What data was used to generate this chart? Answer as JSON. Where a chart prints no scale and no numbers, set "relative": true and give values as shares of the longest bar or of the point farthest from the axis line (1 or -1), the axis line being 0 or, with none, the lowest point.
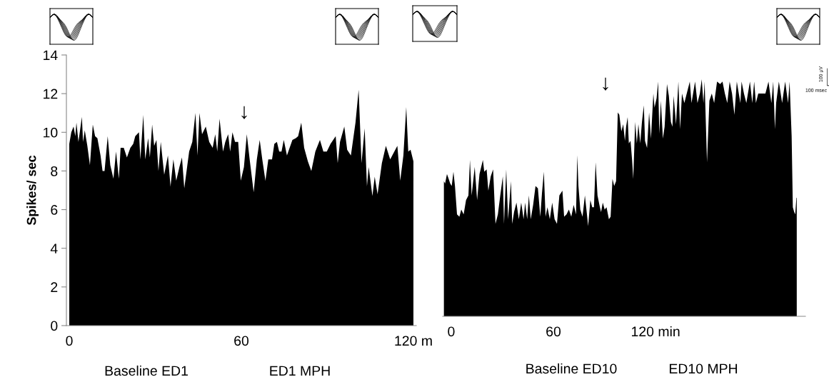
{
  "chart_data": [
    {
      "type": "area",
      "ylabel": "Spikes/ sec",
      "xlim": [
        -1,
        121
      ],
      "xticks": [
        0,
        60,
        {
          "value": 120,
          "label": "120 m"
        }
      ],
      "ylim": [
        0,
        14
      ],
      "yticks": [
        0,
        2,
        4,
        6,
        8,
        10,
        12,
        14
      ],
      "tick_labels": "xy",
      "grid": false,
      "x": [
        0,
        0.7,
        1.5,
        2.1,
        2.5,
        3.2,
        4.4,
        4.8,
        5.4,
        6.3,
        7.2,
        8.2,
        9,
        9.8,
        10.9,
        11.6,
        12.3,
        13.4,
        14.3,
        15.4,
        16.3,
        17.3,
        17.9,
        19,
        20.1,
        21.3,
        22.3,
        23,
        24.3,
        24.8,
        25.8,
        26.5,
        27.5,
        28.1,
        28.9,
        29.6,
        30.4,
        31.1,
        31.9,
        33.1,
        34.4,
        35.3,
        36.3,
        37.3,
        38.4,
        39.3,
        40.1,
        41.8,
        42.9,
        44,
        44.7,
        45.4,
        46.3,
        47.6,
        48.8,
        50,
        50.9,
        51.6,
        52.4,
        53.6,
        54.4,
        55.4,
        56.1,
        56.9,
        57.8,
        58.9,
        59.8,
        60.9,
        61.9,
        62.9,
        64.3,
        65.4,
        66.4,
        67.3,
        68.4,
        69.4,
        70.7,
        71.5,
        72.4,
        73.2,
        74,
        74.8,
        75.9,
        77.8,
        79,
        79.8,
        80.9,
        81.9,
        83.2,
        84.4,
        85.8,
        87.4,
        88.6,
        89.8,
        91.1,
        92.9,
        93.6,
        94.4,
        95.9,
        96.9,
        98.2,
        99.8,
        100.9,
        101.9,
        103,
        103.8,
        104.4,
        105.7,
        106.5,
        107.5,
        109,
        110.4,
        111.9,
        114.4,
        115.4,
        116.5,
        117.5,
        118.2,
        119,
        120
      ],
      "series": [
        {
          "color": "#000000",
          "values": [
            9.4,
            10.0,
            10.3,
            9.8,
            10.5,
            9.5,
            10.8,
            9.5,
            10.1,
            9.3,
            8.3,
            10.4,
            9.8,
            9.7,
            8.8,
            8.0,
            8.0,
            9.8,
            8.3,
            7.6,
            9.0,
            7.6,
            9.2,
            9.2,
            8.7,
            9.2,
            9.4,
            9.8,
            10.0,
            8.6,
            10.9,
            8.6,
            9.7,
            8.7,
            10.4,
            9.3,
            9.6,
            8.0,
            9.5,
            7.8,
            8.8,
            7.2,
            8.6,
            7.5,
            8.2,
            8.7,
            7.1,
            9.0,
            9.5,
            11.0,
            8.8,
            11.0,
            9.9,
            10.3,
            9.5,
            9.2,
            9.9,
            9.0,
            10.7,
            9.0,
            9.5,
            9.9,
            9.0,
            10.0,
            9.5,
            9.5,
            7.5,
            8.2,
            9.9,
            8.6,
            6.9,
            8.6,
            9.6,
            8.6,
            7.5,
            8.6,
            8.6,
            9.4,
            9.5,
            9.0,
            9.0,
            9.6,
            8.8,
            9.6,
            9.7,
            9.8,
            10.5,
            9.2,
            8.5,
            8.0,
            9.0,
            9.6,
            9.0,
            9.0,
            9.4,
            9.8,
            8.4,
            9.5,
            10.3,
            9.1,
            8.8,
            10.5,
            12.2,
            8.4,
            10.2,
            7.2,
            8.2,
            6.7,
            7.7,
            6.8,
            8.4,
            9.3,
            8.6,
            9.3,
            7.5,
            8.8,
            11.3,
            9.0,
            9.1,
            8.5
          ]
        }
      ],
      "annotations": [
        "↓",
        "Baseline ED1",
        "ED1 MPH"
      ]
    },
    {
      "type": "area",
      "relative": true,
      "xlim": [
        -5,
        208
      ],
      "xticks": [
        0,
        60,
        {
          "value": 120,
          "label": "120 min"
        }
      ],
      "tick_labels": "x",
      "grid": false,
      "x": [
        -4.3,
        -3.6,
        -2.5,
        -1.5,
        -0.6,
        0.3,
        1.3,
        2.2,
        3.4,
        4.8,
        5.9,
        7.3,
        8.7,
        10.1,
        11.0,
        12.0,
        13.8,
        15.2,
        16.6,
        18.6,
        19.4,
        20.8,
        21.8,
        23.2,
        24.6,
        26.0,
        27.4,
        28.8,
        30.3,
        31.0,
        32.3,
        33.4,
        35.1,
        35.8,
        36.9,
        38.3,
        39.7,
        41.1,
        42.5,
        43.4,
        44.6,
        45.6,
        46.7,
        48.1,
        49.5,
        50.9,
        52.3,
        53.3,
        54.4,
        55.4,
        56.5,
        57.9,
        59.3,
        60.7,
        62.1,
        63.5,
        65.3,
        66.3,
        67.7,
        69.1,
        70.5,
        71.9,
        73.3,
        74.0,
        74.7,
        75.8,
        77.1,
        78.5,
        79.7,
        80.4,
        81.7,
        82.8,
        83.8,
        84.8,
        85.9,
        87.3,
        88.0,
        89.0,
        90.1,
        91.2,
        92.6,
        93.6,
        94.7,
        95.7,
        96.8,
        97.8,
        98.7,
        99.9,
        101.0,
        102.0,
        102.7,
        103.6,
        104.3,
        105.3,
        106.2,
        106.9,
        108.0,
        109.0,
        109.9,
        111.0,
        112.0,
        113.1,
        113.8,
        115.0,
        116.2,
        117.3,
        118.7,
        119.4,
        120.6,
        121.5,
        122.2,
        123.1,
        124.3,
        125.3,
        126.7,
        127.8,
        129.0,
        129.9,
        130.6,
        132.0,
        133.4,
        134.4,
        135.5,
        136.9,
        138.3,
        140.1,
        141.1,
        143.2,
        144.6,
        146.0,
        147.1,
        148.1,
        148.8,
        150.2,
        151.6,
        153.0,
        154.4,
        156.1,
        157.9,
        159.3,
        160.7,
        162.1,
        163.5,
        164.9,
        166.3,
        167.7,
        169.8,
        170.5,
        171.9,
        173.3,
        175.4,
        176.8,
        177.9,
        178.9,
        180.3,
        182.4,
        184.5,
        186.3,
        188.0,
        189.1,
        190.1,
        190.8,
        192.4,
        194.3,
        196.1,
        197.8,
        198.7,
        199.9,
        200.6,
        201.4,
        202.0,
        202.7,
        202.9
      ],
      "series": [
        {
          "color": "#000000",
          "values": [
            0.57,
            0.56,
            0.6,
            0.58,
            0.56,
            0.55,
            0.61,
            0.55,
            0.43,
            0.42,
            0.45,
            0.43,
            0.49,
            0.51,
            0.66,
            0.51,
            0.63,
            0.49,
            0.6,
            0.66,
            0.61,
            0.62,
            0.53,
            0.59,
            0.62,
            0.39,
            0.43,
            0.51,
            0.59,
            0.39,
            0.62,
            0.41,
            0.57,
            0.39,
            0.44,
            0.48,
            0.41,
            0.48,
            0.41,
            0.48,
            0.41,
            0.51,
            0.41,
            0.47,
            0.55,
            0.54,
            0.42,
            0.52,
            0.61,
            0.42,
            0.46,
            0.41,
            0.48,
            0.41,
            0.39,
            0.51,
            0.53,
            0.42,
            0.43,
            0.45,
            0.42,
            0.47,
            0.43,
            0.68,
            0.55,
            0.45,
            0.42,
            0.51,
            0.43,
            0.38,
            0.49,
            0.46,
            0.46,
            0.65,
            0.51,
            0.46,
            0.44,
            0.48,
            0.45,
            0.46,
            0.41,
            0.42,
            0.58,
            0.55,
            0.57,
            0.86,
            0.85,
            0.78,
            0.81,
            0.74,
            0.8,
            0.84,
            0.73,
            0.74,
            0.66,
            0.58,
            0.82,
            0.73,
            0.81,
            0.73,
            0.82,
            0.89,
            0.74,
            0.71,
            0.86,
            0.75,
            0.94,
            0.88,
            0.92,
            0.99,
            0.77,
            0.91,
            0.75,
            0.8,
            0.98,
            0.93,
            0.82,
            0.8,
            0.93,
            0.81,
            0.99,
            0.79,
            0.94,
            0.9,
            0.94,
            0.99,
            0.9,
            0.99,
            0.9,
            0.94,
            1,
            0.9,
            0.99,
            0.65,
            0.91,
            0.94,
            0.9,
            0.99,
            0.98,
            0.99,
            0.94,
            0.9,
            0.99,
            0.94,
            0.85,
            0.99,
            0.9,
            0.99,
            0.94,
            0.9,
            0.99,
            0.9,
            0.99,
            0.9,
            0.94,
            0.94,
            0.94,
            0.99,
            0.9,
            0.99,
            0.79,
            0.9,
            0.99,
            0.9,
            0.99,
            0.9,
            0.99,
            0.76,
            0.46,
            0.44,
            0.43,
            0.5,
            0.5
          ]
        }
      ],
      "annotations": [
        "↓",
        "Baseline ED10",
        "ED10 MPH",
        "100 µV",
        "100 msec"
      ]
    }
  ]
}
